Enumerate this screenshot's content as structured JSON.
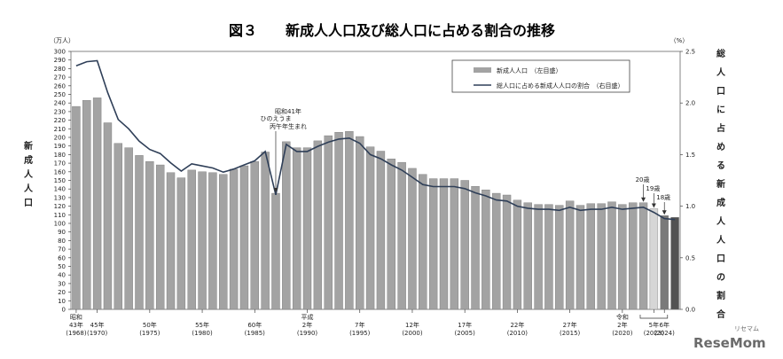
{
  "chart_data": {
    "type": "bar+line",
    "title": "図３　　新成人人口及び総人口に占める割合の推移",
    "left_unit": "（万人）",
    "right_unit": "（%）",
    "ylabel_left": "新成人人口",
    "ylabel_right": "総人口に占める新成人人口の割合",
    "ylim_left": [
      0,
      300
    ],
    "ylim_right": [
      0,
      2.5
    ],
    "left_ticks": [
      0,
      10,
      20,
      30,
      40,
      50,
      60,
      70,
      80,
      90,
      100,
      110,
      120,
      130,
      140,
      150,
      160,
      170,
      180,
      190,
      200,
      210,
      220,
      230,
      240,
      250,
      260,
      270,
      280,
      290,
      300
    ],
    "right_ticks": [
      "0.0",
      "0.5",
      "1.0",
      "1.5",
      "2.0",
      "2.5"
    ],
    "legend": {
      "bar": "新成人人口　（左目盛）",
      "line": "総人口に占める新成人人口の割合　（右目盛）"
    },
    "years": [
      1968,
      1969,
      1970,
      1971,
      1972,
      1973,
      1974,
      1975,
      1976,
      1977,
      1978,
      1979,
      1980,
      1981,
      1982,
      1983,
      1984,
      1985,
      1986,
      1987,
      1988,
      1989,
      1990,
      1991,
      1992,
      1993,
      1994,
      1995,
      1996,
      1997,
      1998,
      1999,
      2000,
      2001,
      2002,
      2003,
      2004,
      2005,
      2006,
      2007,
      2008,
      2009,
      2010,
      2011,
      2012,
      2013,
      2014,
      2015,
      2016,
      2017,
      2018,
      2019,
      2020,
      2021,
      2022,
      2023,
      2024,
      2025
    ],
    "bars": [
      236,
      243,
      246,
      217,
      193,
      188,
      179,
      172,
      168,
      159,
      153,
      162,
      160,
      159,
      157,
      163,
      167,
      172,
      183,
      135,
      195,
      188,
      188,
      196,
      202,
      206,
      207,
      201,
      189,
      184,
      175,
      171,
      164,
      157,
      152,
      152,
      152,
      150,
      143,
      139,
      135,
      133,
      127,
      124,
      122,
      122,
      121,
      126,
      121,
      123,
      123,
      125,
      122,
      124,
      124,
      117,
      109,
      107
    ],
    "bar_colors": {
      "default": "#a3a3a3",
      "highlight_2025": "#d6d6d6",
      "highlight_2026": "#7a7a7a",
      "highlight_2027": "#525252"
    },
    "extra_bars": [
      {
        "label": "19歳",
        "value": 109
      },
      {
        "label": "18歳",
        "value": 107
      }
    ],
    "line": [
      2.36,
      2.4,
      2.41,
      2.1,
      1.84,
      1.75,
      1.63,
      1.55,
      1.51,
      1.42,
      1.34,
      1.41,
      1.39,
      1.37,
      1.33,
      1.36,
      1.4,
      1.44,
      1.53,
      1.11,
      1.6,
      1.53,
      1.53,
      1.58,
      1.62,
      1.65,
      1.66,
      1.61,
      1.5,
      1.46,
      1.4,
      1.35,
      1.28,
      1.21,
      1.19,
      1.19,
      1.19,
      1.17,
      1.13,
      1.1,
      1.06,
      1.05,
      1.0,
      0.98,
      0.97,
      0.97,
      0.96,
      0.99,
      0.96,
      0.97,
      0.97,
      0.99,
      0.97,
      0.98,
      0.99,
      0.94,
      0.88,
      0.87
    ],
    "x_era_labels": [
      {
        "index": 0,
        "lines": [
          "昭和",
          "43年",
          "(1968)"
        ]
      },
      {
        "index": 2,
        "lines": [
          "45年",
          "(1970)"
        ]
      },
      {
        "index": 7,
        "lines": [
          "50年",
          "(1975)"
        ]
      },
      {
        "index": 12,
        "lines": [
          "55年",
          "(1980)"
        ]
      },
      {
        "index": 17,
        "lines": [
          "60年",
          "(1985)"
        ]
      },
      {
        "index": 22,
        "lines": [
          "平成",
          "2年",
          "(1990)"
        ]
      },
      {
        "index": 27,
        "lines": [
          "7年",
          "(1995)"
        ]
      },
      {
        "index": 32,
        "lines": [
          "12年",
          "(2000)"
        ]
      },
      {
        "index": 37,
        "lines": [
          "17年",
          "(2005)"
        ]
      },
      {
        "index": 42,
        "lines": [
          "22年",
          "(2010)"
        ]
      },
      {
        "index": 47,
        "lines": [
          "27年",
          "(2015)"
        ]
      },
      {
        "index": 52,
        "lines": [
          "令和",
          "2年",
          "(2020)"
        ]
      },
      {
        "index": 55,
        "lines": [
          "5年",
          "(2023)"
        ]
      },
      {
        "index": 56,
        "lines": [
          "6年",
          "(2024)"
        ]
      }
    ],
    "annotations": {
      "hinoeuma": [
        "昭和41年",
        "ひのえうま",
        "丙午年生まれ"
      ],
      "age20": "20歳",
      "age19": "19歳",
      "age18": "18歳"
    }
  },
  "watermark": {
    "text": "ReseMom",
    "kana": "リセマム"
  }
}
